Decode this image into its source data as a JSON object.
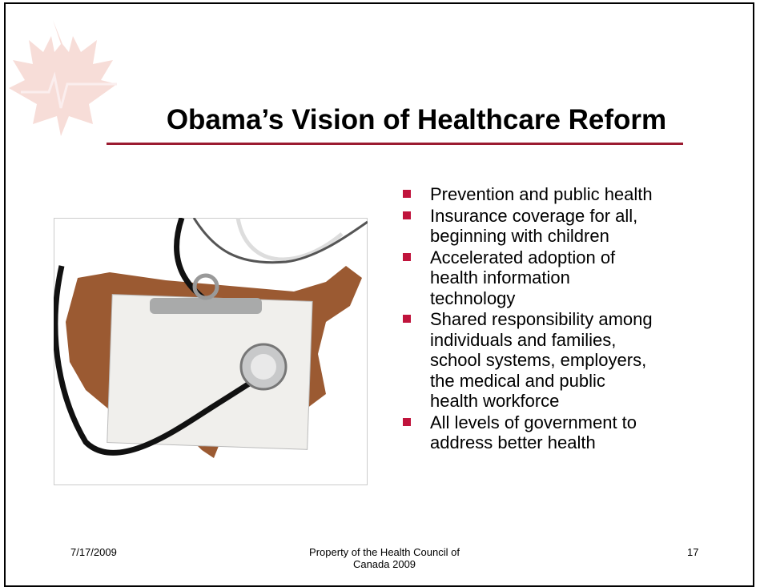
{
  "title": "Obama’s Vision of Healthcare Reform",
  "bullets": [
    [
      "Prevention and public health"
    ],
    [
      "Insurance coverage for all,",
      "beginning with children"
    ],
    [
      "Accelerated adoption of",
      "health information",
      "technology"
    ],
    [
      "Shared responsibility among",
      "individuals and families,",
      "school systems, employers,",
      "the medical and public",
      "health workforce"
    ],
    [
      "All levels of government to",
      "address better health"
    ]
  ],
  "footer": {
    "date": "7/17/2009",
    "source": [
      "Property of the Health Council of",
      "Canada 2009"
    ],
    "page": 17
  }
}
